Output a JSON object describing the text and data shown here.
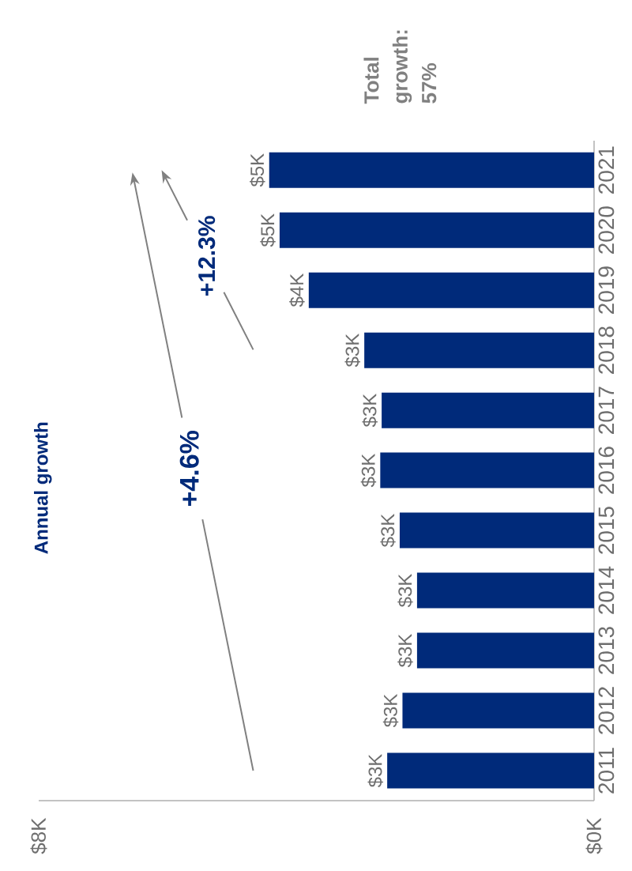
{
  "chart_data": {
    "type": "bar",
    "orientation": "horizontal",
    "categories": [
      "2021",
      "2020",
      "2019",
      "2018",
      "2017",
      "2016",
      "2015",
      "2014",
      "2013",
      "2012",
      "2011"
    ],
    "values": [
      4.68,
      4.53,
      4.11,
      3.31,
      3.06,
      3.08,
      2.8,
      2.55,
      2.55,
      2.76,
      2.98
    ],
    "value_labels": [
      "$5K",
      "$5K",
      "$4K",
      "$3K",
      "$3K",
      "$3K",
      "$3K",
      "$3K",
      "$3K",
      "$3K",
      "$3K"
    ],
    "color": "#002a7a",
    "xlim": [
      8,
      0
    ],
    "xticks": [
      {
        "value": 8,
        "label": "$8K"
      },
      {
        "value": 0,
        "label": "$0K"
      }
    ],
    "annotations": [
      "Annual growth",
      "+4.6%",
      "+12.3%",
      "Total growth: 57%"
    ]
  }
}
